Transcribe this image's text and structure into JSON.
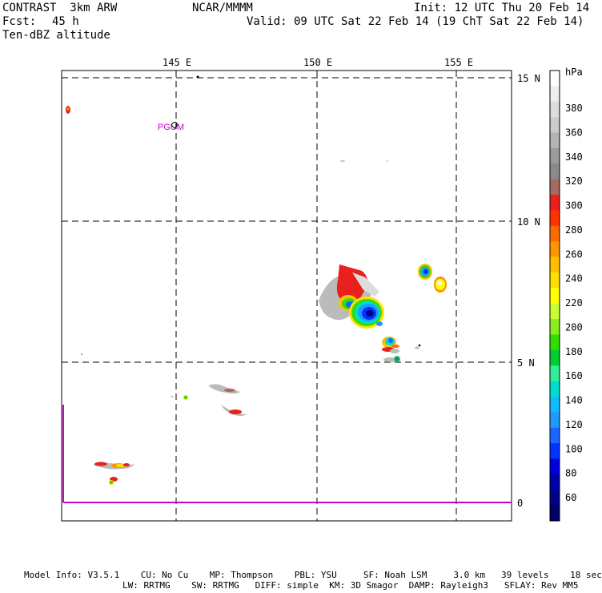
{
  "header": {
    "model": "CONTRAST  3km ARW",
    "org": "NCAR/MMMM",
    "init": "Init: 12 UTC Thu 20 Feb 14",
    "fcst_label": "Fcst:",
    "fcst_value": "45 h",
    "valid": "Valid: 09 UTC Sat 22 Feb 14 (19 ChT Sat 22 Feb 14)",
    "field": "Ten-dBZ altitude"
  },
  "map": {
    "lon_labels": [
      "145 E",
      "150 E",
      "155 E"
    ],
    "lat_labels": [
      "15 N",
      "10 N",
      "5 N",
      "0"
    ],
    "station": "PGUM",
    "station_color": "#cc00cc",
    "equator_color": "#cc00cc"
  },
  "colorbar": {
    "unit": "hPa",
    "labels": [
      "380",
      "360",
      "340",
      "320",
      "300",
      "280",
      "260",
      "240",
      "220",
      "200",
      "180",
      "160",
      "140",
      "120",
      "100",
      "80",
      "60"
    ],
    "colors": [
      "#ffffff",
      "#eeeeee",
      "#dddddd",
      "#cccccc",
      "#b4b4b4",
      "#9b9b9b",
      "#8a8a8a",
      "#a56b5f",
      "#e8201e",
      "#ff3300",
      "#ff6a00",
      "#ff9500",
      "#ffbf00",
      "#ffe000",
      "#ffff00",
      "#ccff33",
      "#88ee22",
      "#33dd00",
      "#00cc33",
      "#33ee99",
      "#00ddcc",
      "#11bbff",
      "#2299ff",
      "#1a66ff",
      "#0033ff",
      "#0000dd",
      "#0000aa",
      "#000088",
      "#000066"
    ]
  },
  "footer": {
    "line1": "Model Info: V3.5.1    CU: No Cu    MP: Thompson    PBL: YSU     SF: Noah LSM     3.0 km   39 levels    18 sec",
    "line2": "LW: RRTMG    SW: RRTMG   DIFF: simple  KM: 3D Smagor  DAMP: Rayleigh3   SFLAY: Rev MM5"
  }
}
